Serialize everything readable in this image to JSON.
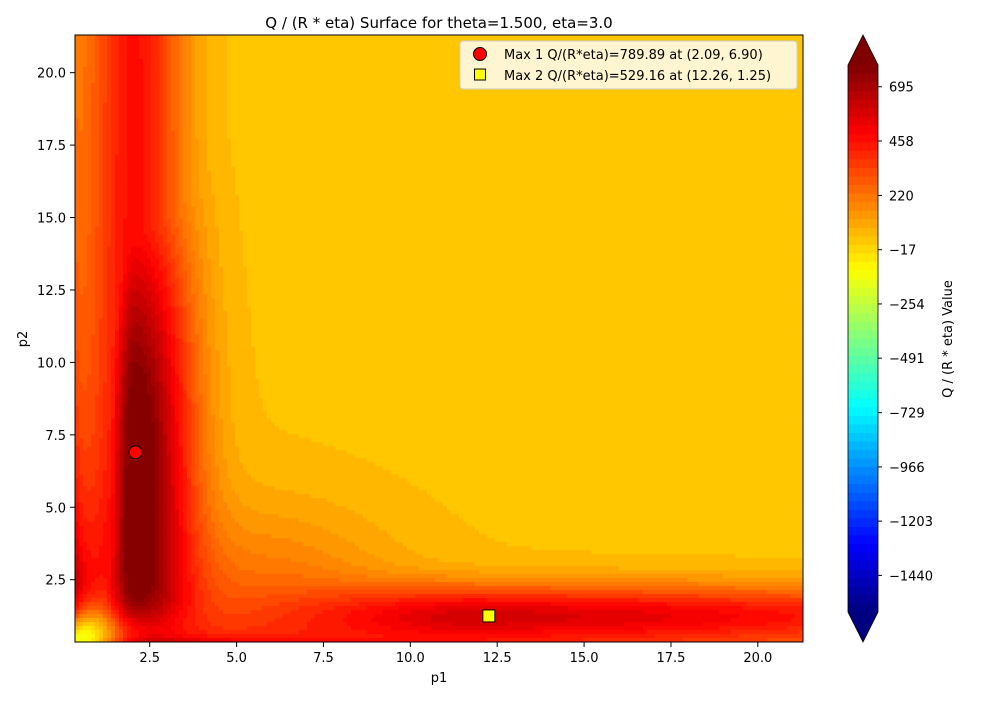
{
  "chart_data": {
    "type": "heatmap",
    "title": "Q / (R * eta) Surface for theta=1.500, eta=3.0",
    "xlabel": "p1",
    "ylabel": "p2",
    "xlim": [
      0.35,
      21.3
    ],
    "ylim": [
      0.35,
      21.3
    ],
    "x_ticks": [
      2.5,
      5.0,
      7.5,
      10.0,
      12.5,
      15.0,
      17.5,
      20.0
    ],
    "x_tick_labels": [
      "2.5",
      "5.0",
      "7.5",
      "10.0",
      "12.5",
      "15.0",
      "17.5",
      "20.0"
    ],
    "y_ticks": [
      2.5,
      5.0,
      7.5,
      10.0,
      12.5,
      15.0,
      17.5,
      20.0
    ],
    "y_tick_labels": [
      "2.5",
      "5.0",
      "7.5",
      "10.0",
      "12.5",
      "15.0",
      "17.5",
      "20.0"
    ],
    "colormap": "jet",
    "colorbar": {
      "label": "Q / (R * eta) Value",
      "vmin": -1600,
      "vmax": 790,
      "ticks": [
        695,
        458,
        220,
        -17,
        -254,
        -491,
        -729,
        -966,
        -1203,
        -1440
      ],
      "tick_labels": [
        "695",
        "458",
        "220",
        "−17",
        "−254",
        "−491",
        "−729",
        "−966",
        "−1203",
        "−1440"
      ],
      "extend": "both"
    },
    "markers": [
      {
        "name": "Max 1 Q/(R*eta)=789.89 at (2.09, 6.90)",
        "x": 2.09,
        "y": 6.9,
        "value": 789.89,
        "shape": "circle",
        "color": "#ff0000"
      },
      {
        "name": "Max 2 Q/(R*eta)=529.16 at (12.26, 1.25)",
        "x": 12.26,
        "y": 1.25,
        "value": 529.16,
        "shape": "square",
        "color": "#ffff00"
      }
    ],
    "legend_position": "top-right",
    "grid": false
  }
}
